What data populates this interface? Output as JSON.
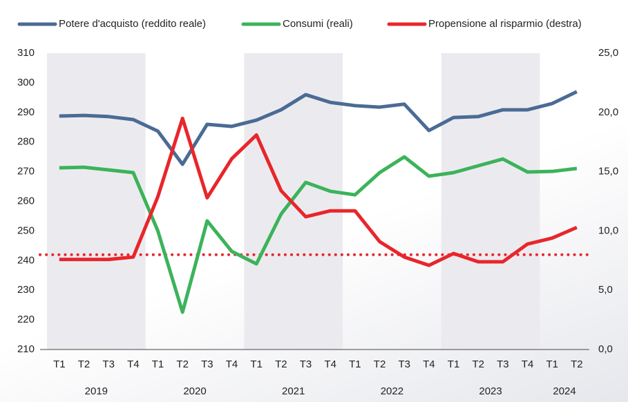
{
  "chart_data": {
    "type": "line",
    "categories": [
      "T1",
      "T2",
      "T3",
      "T4",
      "T1",
      "T2",
      "T3",
      "T4",
      "T1",
      "T2",
      "T3",
      "T4",
      "T1",
      "T2",
      "T3",
      "T4",
      "T1",
      "T2",
      "T3",
      "T4",
      "T1",
      "T2"
    ],
    "year_groups": [
      {
        "label": "2019",
        "count": 4
      },
      {
        "label": "2020",
        "count": 4
      },
      {
        "label": "2021",
        "count": 4
      },
      {
        "label": "2022",
        "count": 4
      },
      {
        "label": "2023",
        "count": 4
      },
      {
        "label": "2024",
        "count": 2
      }
    ],
    "series": [
      {
        "name": "Potere d'acquisto (reddito reale)",
        "color": "#4a6b94",
        "values": [
          288.8,
          289,
          288.6,
          287.6,
          283.7,
          272.5,
          286,
          285.3,
          287.4,
          290.9,
          296,
          293.4,
          292.3,
          291.8,
          292.8,
          283.9,
          288.3,
          288.6,
          290.9,
          290.9,
          293,
          297
        ]
      },
      {
        "name": "Consumi (reali)",
        "color": "#3cb35a",
        "values": [
          271.3,
          271.5,
          270.6,
          269.7,
          250,
          222.6,
          253.4,
          243.1,
          238.9,
          255.7,
          266.4,
          263.4,
          262.2,
          269.7,
          275,
          268.5,
          269.7,
          272,
          274.3,
          269.9,
          270.1,
          271.1
        ]
      },
      {
        "name": "Propensione al risparmio (destra)",
        "color": "#e8262b",
        "axis": "y2",
        "values": [
          7.6,
          7.6,
          7.6,
          7.8,
          12.9,
          19.5,
          12.8,
          16.1,
          18.1,
          13.4,
          11.2,
          11.7,
          11.7,
          9.1,
          7.8,
          7.1,
          8.1,
          7.4,
          7.4,
          8.9,
          9.4,
          10.3
        ]
      }
    ],
    "reference_line": {
      "value": 8.0,
      "axis": "y2",
      "color": "#e8262b"
    },
    "ylim": [
      210,
      310
    ],
    "yticks": [
      210,
      220,
      230,
      240,
      250,
      260,
      270,
      280,
      290,
      300,
      310
    ],
    "y2lim": [
      0,
      25
    ],
    "y2ticks": [
      {
        "value": 0,
        "label": "0,0"
      },
      {
        "value": 5,
        "label": "5,0"
      },
      {
        "value": 10,
        "label": "10,0"
      },
      {
        "value": 15,
        "label": "15,0"
      },
      {
        "value": 20,
        "label": "20,0"
      },
      {
        "value": 25,
        "label": "25,0"
      }
    ],
    "legend": "top"
  }
}
